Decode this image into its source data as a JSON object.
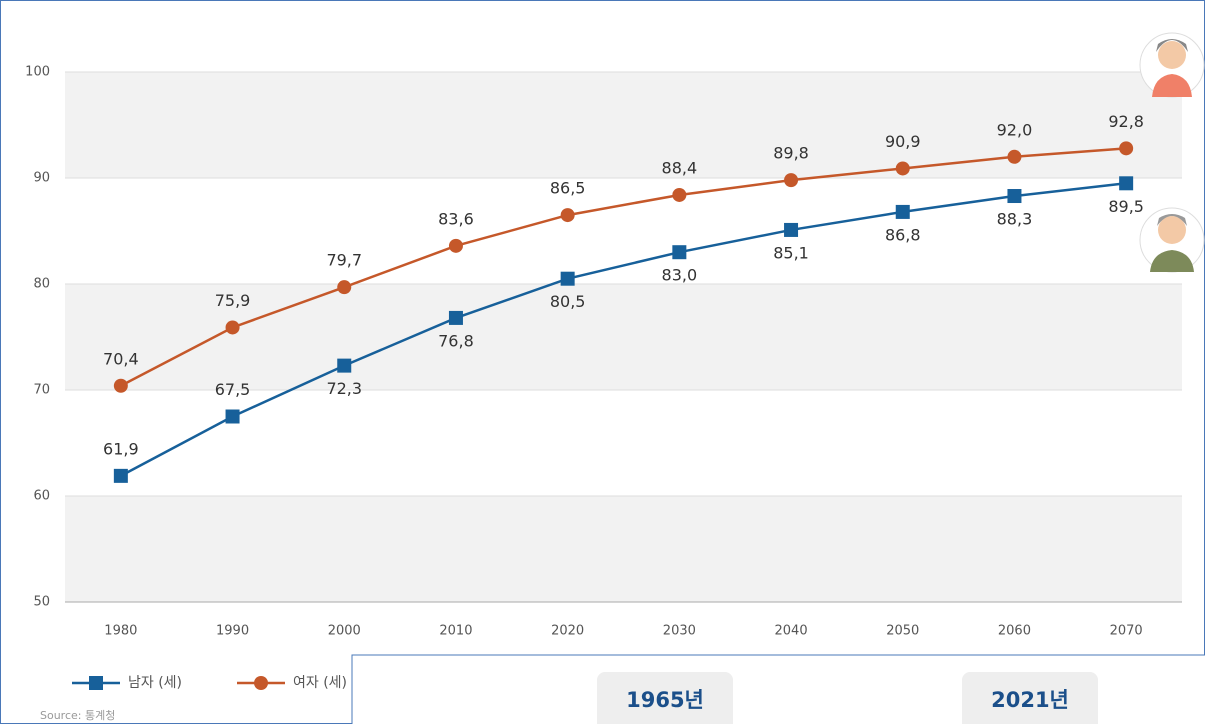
{
  "chart_data": {
    "type": "line",
    "categories": [
      "1980",
      "1990",
      "2000",
      "2010",
      "2020",
      "2030",
      "2040",
      "2050",
      "2060",
      "2070"
    ],
    "series": [
      {
        "name": "남자 (세)",
        "color": "#17609a",
        "marker": "square",
        "values": [
          61.9,
          67.5,
          72.3,
          76.8,
          80.5,
          83.0,
          85.1,
          86.8,
          88.3,
          89.5
        ],
        "value_labels": [
          "61,9",
          "67,5",
          "72,3",
          "76,8",
          "80,5",
          "83,0",
          "85,1",
          "86,8",
          "88,3",
          "89,5"
        ]
      },
      {
        "name": "여자 (세)",
        "color": "#c5582a",
        "marker": "circle",
        "values": [
          70.4,
          75.9,
          79.7,
          83.6,
          86.5,
          88.4,
          89.8,
          90.9,
          92.0,
          92.8
        ],
        "value_labels": [
          "70,4",
          "75,9",
          "79,7",
          "83,6",
          "86,5",
          "88,4",
          "89,8",
          "90,9",
          "92,0",
          "92,8"
        ]
      }
    ],
    "ylim": [
      50,
      100
    ],
    "yticks": [
      50,
      60,
      70,
      80,
      90,
      100
    ],
    "grid": true,
    "source": "Source: 통계청"
  },
  "panel": {
    "buttons": [
      "1965년",
      "2021년"
    ]
  }
}
